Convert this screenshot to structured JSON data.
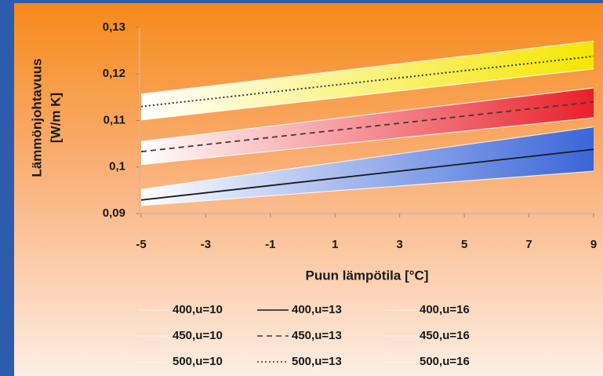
{
  "chart_data": {
    "type": "line",
    "xlabel": "Puun lämpötila [°C]",
    "ylabel": [
      "Lämmönjohtavuus",
      "[W/m K]"
    ],
    "x": [
      -5,
      9
    ],
    "xlim": [
      -5,
      9
    ],
    "xticks": [
      -5,
      -3,
      -1,
      1,
      3,
      5,
      7,
      9
    ],
    "ylim": [
      0.09,
      0.13
    ],
    "yticks": [
      {
        "value": 0.09,
        "label": "0,09"
      },
      {
        "value": 0.1,
        "label": "0,1"
      },
      {
        "value": 0.11,
        "label": "0,11"
      },
      {
        "value": 0.12,
        "label": "0,12"
      },
      {
        "value": 0.13,
        "label": "0,13"
      }
    ],
    "grid": false,
    "series": [
      {
        "name": "400,u=10",
        "color": "#3a66d8",
        "dash": "none",
        "values": [
          0.0917,
          0.0991
        ]
      },
      {
        "name": "400,u=13",
        "color": "#1a1a1a",
        "dash": "solid",
        "values": [
          0.0929,
          0.1038
        ]
      },
      {
        "name": "400,u=16",
        "color": "#3a66d8",
        "dash": "none",
        "values": [
          0.0952,
          0.1086
        ]
      },
      {
        "name": "450,u=10",
        "color": "#e8202a",
        "dash": "none",
        "values": [
          0.1005,
          0.1106
        ]
      },
      {
        "name": "450,u=13",
        "color": "#5a3030",
        "dash": "dashed",
        "values": [
          0.1033,
          0.114
        ]
      },
      {
        "name": "450,u=16",
        "color": "#e8202a",
        "dash": "none",
        "values": [
          0.1055,
          0.117
        ]
      },
      {
        "name": "500,u=10",
        "color": "#f5e600",
        "dash": "none",
        "values": [
          0.1101,
          0.1211
        ]
      },
      {
        "name": "500,u=13",
        "color": "#3a3a3a",
        "dash": "dotted",
        "values": [
          0.113,
          0.1238
        ]
      },
      {
        "name": "500,u=16",
        "color": "#f5e600",
        "dash": "none",
        "values": [
          0.1157,
          0.1271
        ]
      }
    ]
  }
}
